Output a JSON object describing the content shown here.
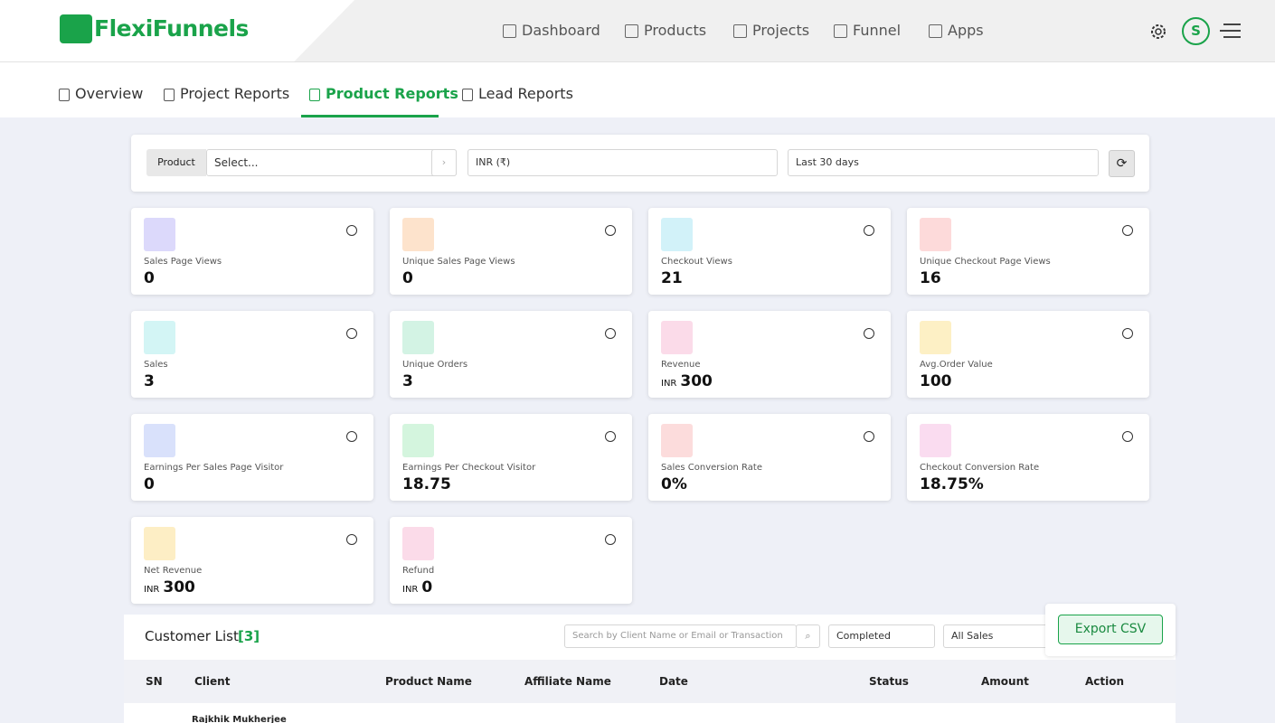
{
  "header": {
    "logo": "FlexiFunnels",
    "nav": [
      "Dashboard",
      "Products",
      "Projects",
      "Funnel",
      "Apps"
    ],
    "avatar": "S"
  },
  "tabs": [
    "Overview",
    "Project Reports",
    "Product Reports",
    "Lead Reports"
  ],
  "filters": {
    "product_button": "Product",
    "product_placeholder": "Select...",
    "currency": "INR (₹)",
    "range": "Last 30 days"
  },
  "metrics": [
    {
      "label": "Sales Page Views",
      "value": "0"
    },
    {
      "label": "Unique Sales Page Views",
      "value": "0"
    },
    {
      "label": "Checkout Views",
      "value": "21"
    },
    {
      "label": "Unique Checkout Page Views",
      "value": "16"
    },
    {
      "label": "Sales",
      "value": "3"
    },
    {
      "label": "Unique Orders",
      "value": "3"
    },
    {
      "label": "Revenue",
      "unit": "INR",
      "value": "300"
    },
    {
      "label": "Avg.Order Value",
      "value": "100"
    },
    {
      "label": "Earnings Per Sales Page Visitor",
      "value": "0"
    },
    {
      "label": "Earnings Per Checkout Visitor",
      "value": "18.75"
    },
    {
      "label": "Sales Conversion Rate",
      "value": "0%"
    },
    {
      "label": "Checkout Conversion Rate",
      "value": "18.75%"
    },
    {
      "label": "Net Revenue",
      "unit": "INR",
      "value": "300"
    },
    {
      "label": "Refund",
      "unit": "INR",
      "value": "0"
    }
  ],
  "customer_list": {
    "title": "Customer List",
    "count": "[3]",
    "search_placeholder": "Search by Client Name or Email or Transaction",
    "status": "Completed",
    "sales": "All Sales",
    "export": "Export CSV",
    "columns": [
      "SN",
      "Client",
      "Product Name",
      "Affiliate Name",
      "Date",
      "Status",
      "Amount",
      "Action"
    ],
    "rows": [
      [
        "Rajkhik Mukherjee"
      ]
    ]
  }
}
